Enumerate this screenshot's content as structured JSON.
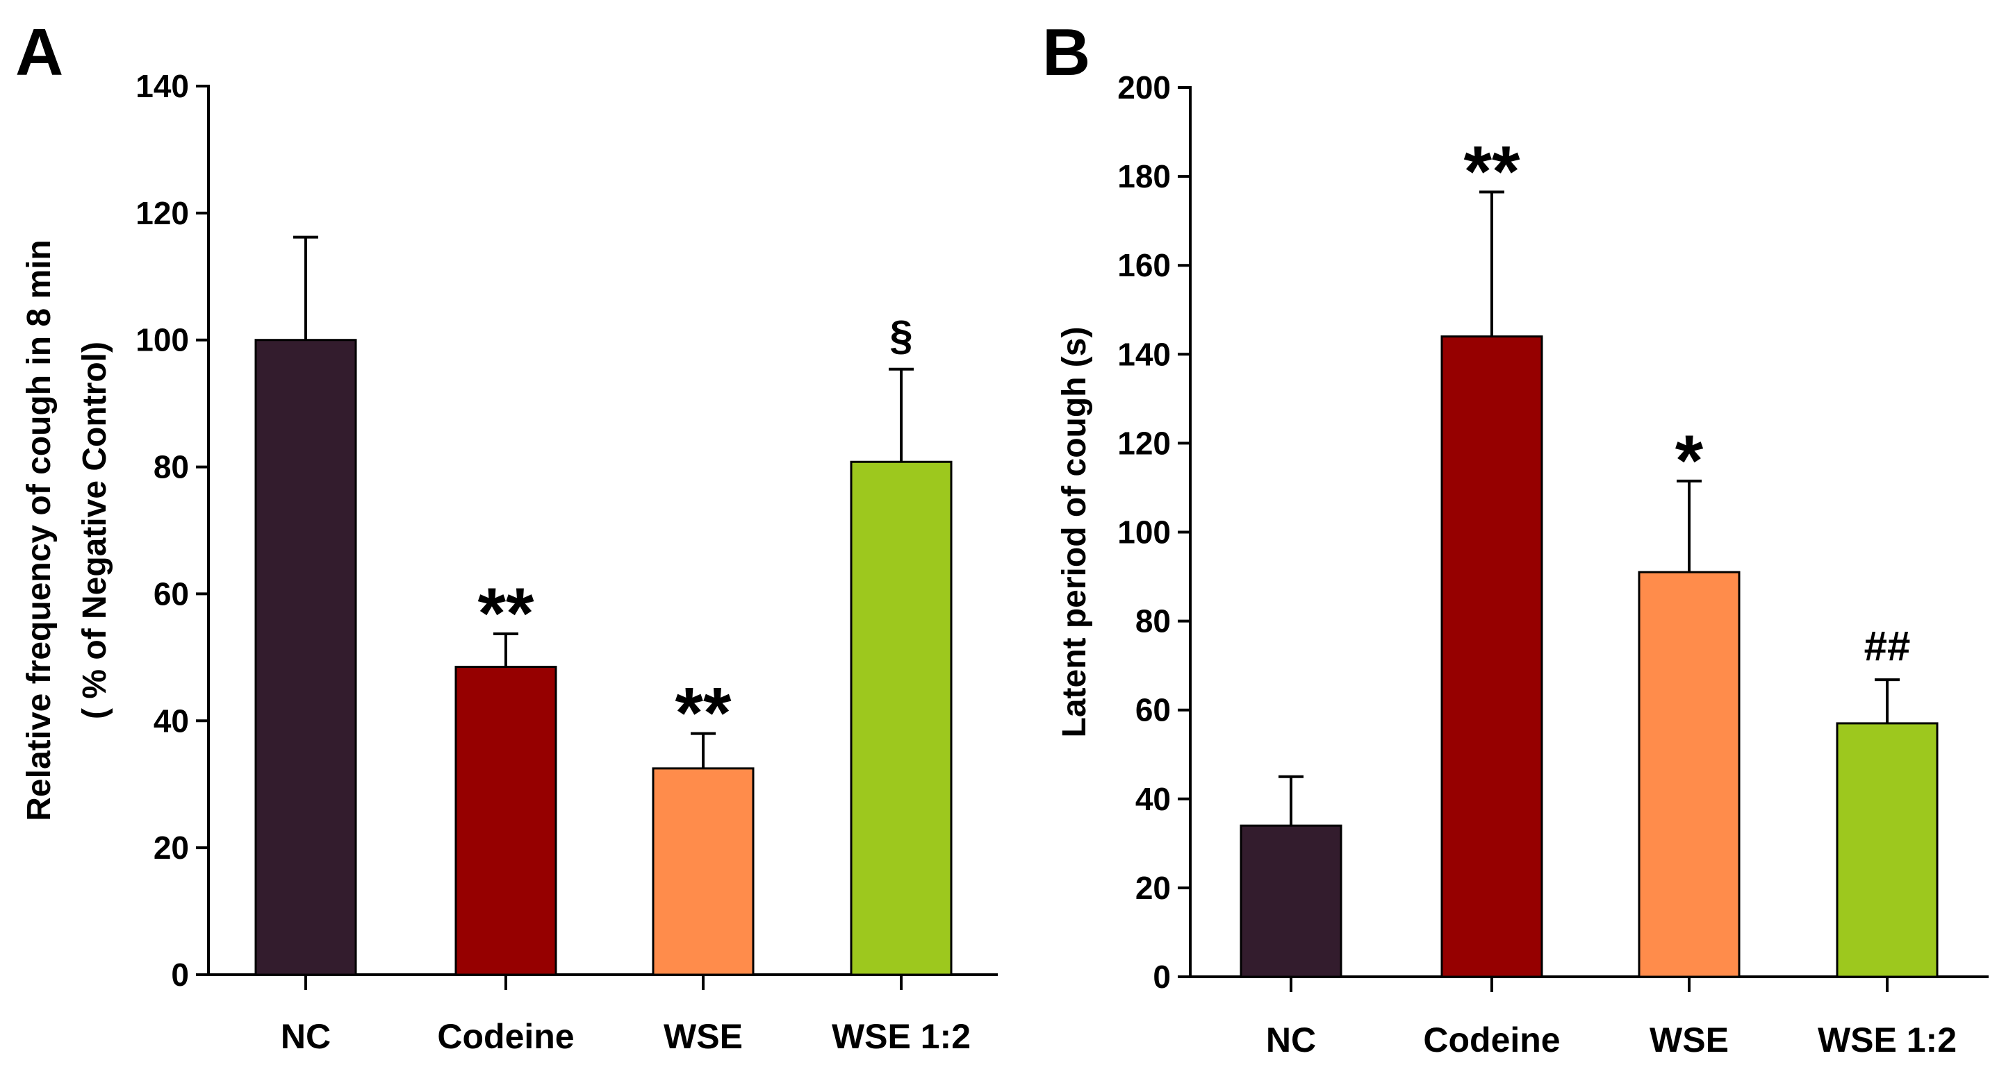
{
  "chart_data": [
    {
      "panel": "A",
      "type": "bar",
      "categories": [
        "NC",
        "Codeine",
        "WSE",
        "WSE 1:2"
      ],
      "values": [
        100,
        48.5,
        32.5,
        80.8
      ],
      "errors": [
        16.2,
        5.2,
        5.5,
        14.6
      ],
      "annotations": [
        "",
        "**",
        "**",
        "§"
      ],
      "colors": [
        "#331c2d",
        "#960000",
        "#ff8c4b",
        "#9dc81e"
      ],
      "ylabel_line1": "Relative frequency of cough in 8 min",
      "ylabel_line2": "( % of Negative Control)",
      "xlabel": "",
      "ylim": [
        0,
        140
      ],
      "yticks": [
        0,
        20,
        40,
        60,
        80,
        100,
        120,
        140
      ],
      "grid": false
    },
    {
      "panel": "B",
      "type": "bar",
      "categories": [
        "NC",
        "Codeine",
        "WSE",
        "WSE 1:2"
      ],
      "values": [
        34,
        144,
        91,
        57
      ],
      "errors": [
        11,
        32.5,
        20.5,
        9.8
      ],
      "annotations": [
        "",
        "**",
        "*",
        "##"
      ],
      "colors": [
        "#331c2d",
        "#960000",
        "#ff8c4b",
        "#9dc81e"
      ],
      "ylabel_line1": "Latent period of cough (s)",
      "ylabel_line2": "",
      "xlabel": "",
      "ylim": [
        0,
        200
      ],
      "yticks": [
        0,
        20,
        40,
        60,
        80,
        100,
        120,
        140,
        160,
        180,
        200
      ],
      "grid": false
    }
  ]
}
